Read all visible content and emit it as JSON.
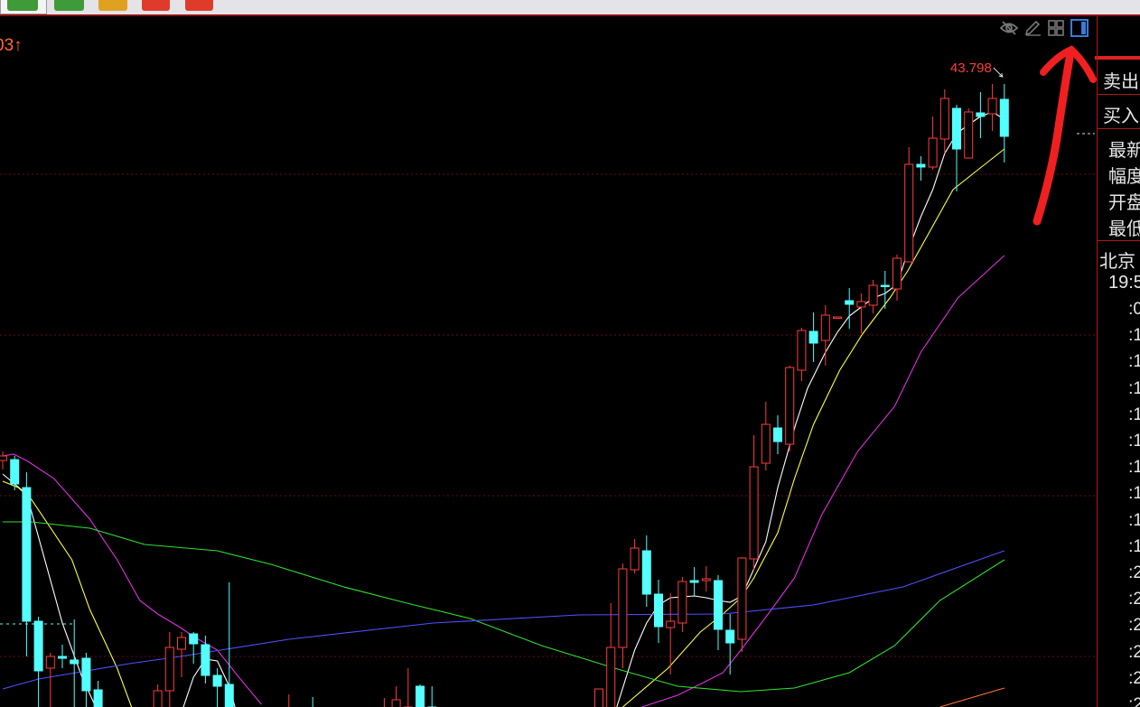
{
  "toolbar": {
    "buttons": [
      {
        "name": "tool-button-1",
        "color": "#3f9a3a"
      },
      {
        "name": "tool-button-2",
        "color": "#3f9a3a"
      },
      {
        "name": "tool-button-3",
        "color": "#e0a020"
      },
      {
        "name": "tool-button-4",
        "color": "#e03a2a"
      },
      {
        "name": "tool-button-5",
        "color": "#e03a2a"
      }
    ]
  },
  "chart_header": {
    "price_tag": "03↑"
  },
  "chart_icons": [
    "eye-slash-icon",
    "pencil-icon",
    "grid-icon",
    "panel-toggle-icon"
  ],
  "annotation": {
    "type": "hand-drawn-arrow",
    "color": "#f02020",
    "points_to": "panel-toggle-icon"
  },
  "right_panel": {
    "sell": "卖出",
    "buy": "买入",
    "quote_labels": [
      "最新",
      "幅度",
      "开盘",
      "最低"
    ],
    "location": "北京",
    "clock": "19:5",
    "time_rows": [
      ":0",
      ":1",
      ":1",
      ":1",
      ":1",
      ":1",
      ":1",
      ":1",
      ":1",
      ":1",
      ":2",
      ":2",
      ":2",
      ":2",
      ":2",
      ":2"
    ]
  },
  "chart_data": {
    "type": "candlestick",
    "high_label": "43.798",
    "colors": {
      "up": "#ff3c3c",
      "down": "#54ffff",
      "ma_white": "#ffffff",
      "ma_yellow": "#ffff40",
      "ma_magenta": "#e030e0",
      "ma_green": "#30e030",
      "ma_blue": "#5050ff",
      "ma_orange": "#ff7030",
      "grid": "#6a0a0a"
    },
    "grid": true,
    "candles": [
      [
        22.95,
        23.2,
        23.45,
        22.45
      ],
      [
        23.0,
        21.65,
        23.2,
        21.3
      ],
      [
        21.45,
        14.05,
        22.3,
        12.1
      ],
      [
        14.05,
        11.3,
        14.3,
        8.95
      ],
      [
        11.45,
        12.1,
        12.3,
        8.95
      ],
      [
        12.1,
        12.0,
        12.75,
        11.45
      ],
      [
        11.9,
        11.7,
        14.15,
        8.95
      ],
      [
        12.0,
        10.2,
        12.3,
        8.95
      ],
      [
        10.25,
        8.95,
        10.75,
        8.5
      ],
      null,
      null,
      null,
      null,
      [
        8.9,
        10.2,
        10.55,
        8.5
      ],
      [
        10.2,
        12.6,
        13.45,
        8.9
      ],
      [
        12.5,
        13.15,
        13.45,
        10.95
      ],
      [
        13.35,
        12.8,
        13.45,
        11.7
      ],
      [
        12.75,
        11.05,
        13.25,
        10.6
      ],
      [
        11.05,
        10.45,
        11.45,
        8.9
      ],
      [
        10.55,
        8.9,
        16.2,
        8.5
      ],
      null,
      null,
      null,
      null,
      [
        8.5,
        8.9,
        10.0,
        8.0
      ],
      null,
      [
        9.0,
        8.5,
        9.85,
        8.0
      ],
      null,
      null,
      null,
      null,
      null,
      [
        8.5,
        8.9,
        9.8,
        8.0
      ],
      [
        8.9,
        9.7,
        10.45,
        8.5
      ],
      [
        8.9,
        9.3,
        11.45,
        8.5
      ],
      [
        10.45,
        8.9,
        10.55,
        8.5
      ],
      [
        9.3,
        8.9,
        10.45,
        8.5
      ],
      null,
      null,
      null,
      null,
      null,
      null,
      null,
      null,
      null,
      null,
      null,
      null,
      null,
      [
        8.9,
        10.3,
        10.3,
        8.5
      ],
      [
        8.9,
        12.6,
        15.05,
        8.5
      ],
      [
        12.6,
        16.95,
        17.25,
        11.45
      ],
      [
        16.9,
        18.1,
        18.6,
        16.7
      ],
      [
        17.95,
        15.55,
        18.8,
        14.85
      ],
      [
        15.55,
        13.75,
        16.35,
        12.85
      ],
      [
        13.7,
        14.05,
        15.6,
        11.1
      ],
      [
        13.95,
        16.25,
        16.5,
        13.45
      ],
      [
        16.3,
        16.2,
        17.05,
        15.45
      ],
      [
        16.3,
        16.4,
        17.1,
        15.7
      ],
      [
        16.3,
        13.6,
        16.6,
        12.45
      ],
      [
        13.55,
        12.85,
        14.45,
        11.1
      ],
      [
        13.05,
        17.55,
        17.6,
        12.35
      ],
      [
        17.5,
        22.6,
        24.35,
        16.85
      ],
      [
        22.8,
        24.95,
        26.2,
        22.4
      ],
      [
        24.75,
        24.0,
        25.45,
        23.3
      ],
      [
        23.85,
        28.1,
        28.2,
        23.45
      ],
      [
        27.95,
        30.15,
        30.3,
        27.35
      ],
      [
        30.1,
        29.45,
        31.15,
        28.4
      ],
      [
        29.6,
        31.0,
        31.55,
        28.2
      ],
      [
        30.9,
        30.9,
        30.9,
        30.9
      ],
      [
        31.8,
        31.6,
        32.5,
        30.25
      ],
      [
        31.45,
        31.75,
        32.2,
        30.0
      ],
      [
        31.55,
        32.65,
        32.95,
        31.1
      ],
      [
        32.65,
        32.6,
        33.45,
        31.35
      ],
      [
        32.45,
        34.15,
        34.35,
        31.8
      ],
      [
        33.95,
        39.35,
        40.3,
        33.95
      ],
      [
        39.35,
        39.2,
        39.8,
        38.45
      ],
      [
        39.2,
        40.8,
        42.0,
        39.05
      ],
      [
        40.75,
        43.0,
        43.5,
        39.95
      ],
      [
        42.45,
        40.2,
        42.65,
        37.85
      ],
      [
        39.7,
        42.25,
        42.45,
        39.7
      ],
      [
        42.2,
        42.0,
        43.35,
        40.8
      ],
      [
        42.15,
        43.0,
        43.8,
        41.2
      ],
      [
        42.95,
        40.9,
        43.798,
        39.45
      ]
    ],
    "moving_averages": [
      {
        "color_key": "ma_white",
        "segments": [
          [
            [
              0,
              22.2
            ],
            [
              2,
              21.1
            ],
            [
              5,
              13.95
            ],
            [
              6.6,
              11.05
            ],
            [
              8,
              9.0
            ]
          ],
          [
            [
              15,
              9.0
            ],
            [
              16,
              10.95
            ],
            [
              17,
              11.95
            ],
            [
              18,
              11.85
            ],
            [
              19,
              10.45
            ],
            [
              19.6,
              9.0
            ]
          ],
          [
            [
              51.5,
              9.3
            ],
            [
              53,
              12.45
            ],
            [
              54,
              13.95
            ],
            [
              55,
              14.95
            ],
            [
              56,
              15.35
            ],
            [
              58,
              15.45
            ],
            [
              59,
              15.35
            ],
            [
              60,
              15.2
            ],
            [
              61,
              15.1
            ],
            [
              62,
              15.45
            ],
            [
              63,
              16.95
            ],
            [
              64,
              18.45
            ],
            [
              65,
              21.45
            ],
            [
              66.5,
              24.95
            ],
            [
              67.5,
              26.95
            ],
            [
              69,
              28.95
            ],
            [
              70,
              30.05
            ],
            [
              71,
              30.95
            ],
            [
              72,
              31.45
            ],
            [
              73,
              31.95
            ],
            [
              74,
              32.2
            ],
            [
              75,
              32.7
            ],
            [
              76,
              34.7
            ],
            [
              77,
              36.45
            ],
            [
              78,
              37.95
            ],
            [
              79,
              39.95
            ],
            [
              80,
              41.05
            ],
            [
              81,
              41.55
            ],
            [
              82,
              42.0
            ],
            [
              83,
              42.25
            ],
            [
              84,
              41.85
            ]
          ]
        ]
      },
      {
        "color_key": "ma_yellow",
        "segments": [
          [
            [
              0,
              21.8
            ],
            [
              1.3,
              21.45
            ],
            [
              2.4,
              20.8
            ],
            [
              5.8,
              17.45
            ],
            [
              7.3,
              14.7
            ],
            [
              9.6,
              11.45
            ],
            [
              10.8,
              9.3
            ]
          ],
          [
            [
              52,
              9.3
            ],
            [
              55.8,
              11.45
            ],
            [
              58.5,
              13.45
            ],
            [
              60.4,
              14.45
            ],
            [
              61.9,
              15.35
            ],
            [
              63,
              16.45
            ],
            [
              65,
              18.95
            ],
            [
              66.4,
              21.95
            ],
            [
              68,
              24.95
            ],
            [
              70.2,
              27.95
            ],
            [
              72.1,
              29.95
            ],
            [
              74.4,
              31.95
            ],
            [
              75.9,
              33.45
            ],
            [
              77.8,
              35.7
            ],
            [
              79.7,
              37.95
            ],
            [
              81.6,
              38.95
            ],
            [
              84,
              40.2
            ]
          ]
        ]
      },
      {
        "color_key": "ma_magenta",
        "segments": [
          [
            [
              0,
              23.2
            ],
            [
              0.9,
              23.3
            ],
            [
              2,
              22.95
            ],
            [
              4.3,
              21.95
            ],
            [
              7.3,
              19.7
            ],
            [
              9.6,
              17.45
            ],
            [
              11.5,
              15.2
            ],
            [
              13,
              14.45
            ],
            [
              14.9,
              13.7
            ],
            [
              16,
              13.2
            ],
            [
              18,
              12.45
            ],
            [
              19.8,
              10.95
            ],
            [
              21.7,
              9.45
            ]
          ],
          [
            [
              53.6,
              9.3
            ],
            [
              56.6,
              9.95
            ],
            [
              58.9,
              10.7
            ],
            [
              60.4,
              11.2
            ],
            [
              61.9,
              12.45
            ],
            [
              64.2,
              14.45
            ],
            [
              66.4,
              16.45
            ],
            [
              68.7,
              19.95
            ],
            [
              71.7,
              23.45
            ],
            [
              74.8,
              25.95
            ],
            [
              77,
              28.95
            ],
            [
              80.1,
              31.95
            ],
            [
              84,
              34.3
            ]
          ]
        ]
      },
      {
        "color_key": "ma_green",
        "segments": [
          [
            [
              0,
              19.55
            ],
            [
              2.4,
              19.55
            ],
            [
              7.3,
              19.2
            ],
            [
              11.9,
              18.3
            ],
            [
              18,
              17.95
            ],
            [
              22.5,
              17.2
            ],
            [
              28.6,
              15.95
            ],
            [
              33.9,
              15.05
            ],
            [
              39.2,
              14.2
            ],
            [
              45.2,
              12.7
            ],
            [
              51.3,
              11.45
            ],
            [
              56.6,
              10.45
            ],
            [
              61.9,
              10.15
            ],
            [
              66.4,
              10.35
            ],
            [
              71,
              11.2
            ],
            [
              74.8,
              12.7
            ],
            [
              78.6,
              15.2
            ],
            [
              84,
              17.45
            ]
          ]
        ]
      },
      {
        "color_key": "ma_blue",
        "segments": [
          [
            [
              0,
              10.3
            ],
            [
              3,
              10.85
            ],
            [
              10.6,
              11.7
            ],
            [
              14.9,
              12.1
            ],
            [
              24,
              13.05
            ],
            [
              36.1,
              13.95
            ],
            [
              48.3,
              14.4
            ],
            [
              60.4,
              14.45
            ],
            [
              68,
              14.95
            ],
            [
              75.5,
              15.95
            ],
            [
              84,
              17.95
            ]
          ]
        ]
      },
      {
        "color_key": "ma_orange",
        "segments": [
          [
            [
              78.6,
              9.3
            ],
            [
              84,
              10.35
            ]
          ]
        ]
      }
    ]
  }
}
